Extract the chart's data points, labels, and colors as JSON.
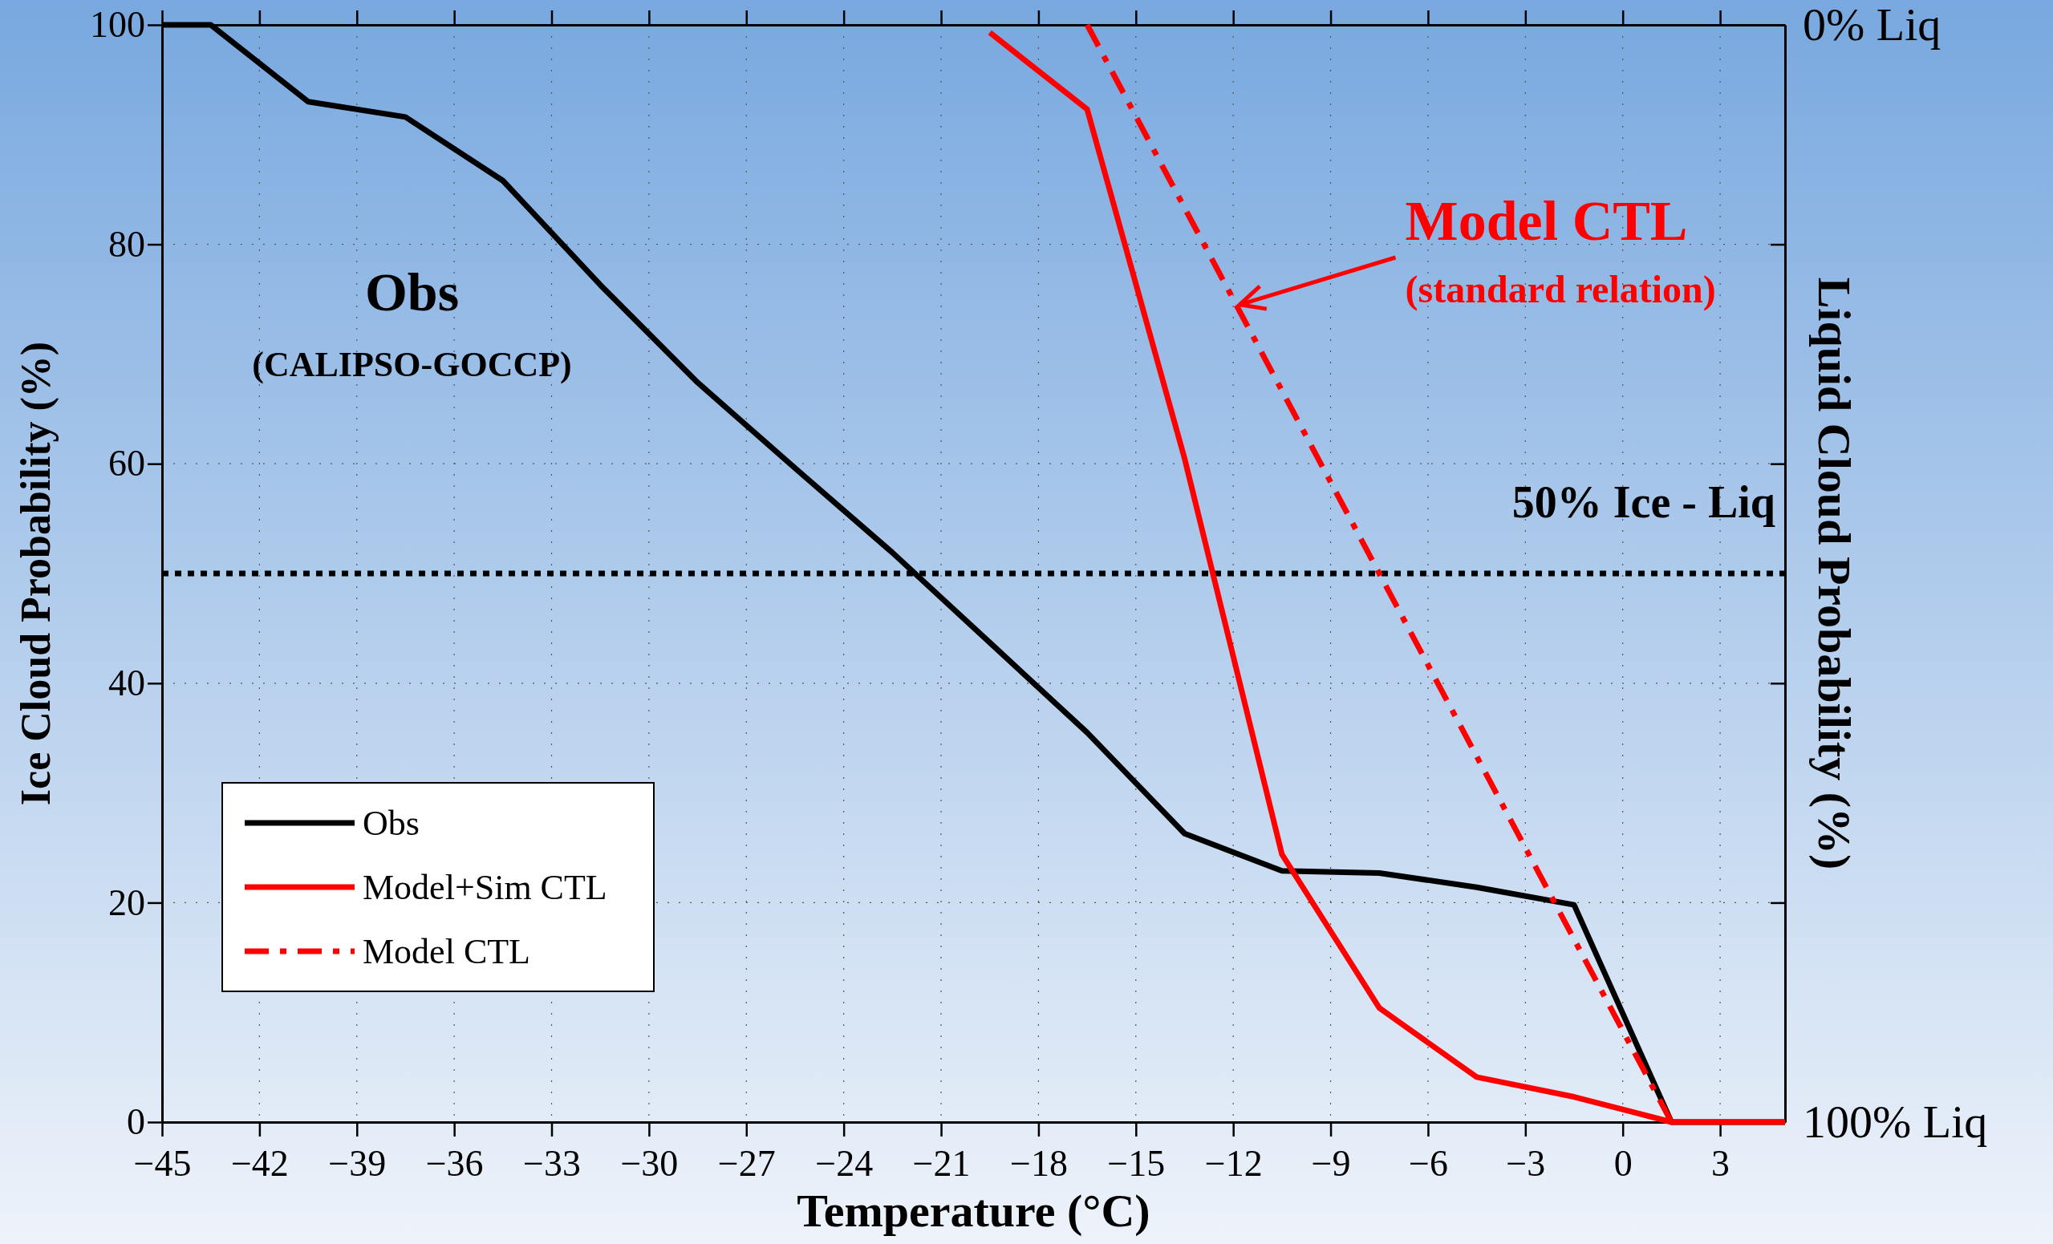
{
  "chart_data": {
    "type": "line",
    "xlabel": "Temperature (°C)",
    "ylabel": "Ice Cloud Probability (%)",
    "y2label": "Liquid Cloud Probability (%)",
    "xlim": [
      -45,
      5
    ],
    "xticks": [
      {
        "value": -45,
        "label": "−45"
      },
      {
        "value": -42,
        "label": "−42"
      },
      {
        "value": -39,
        "label": "−39"
      },
      {
        "value": -36,
        "label": "−36"
      },
      {
        "value": -33,
        "label": "−33"
      },
      {
        "value": -30,
        "label": "−30"
      },
      {
        "value": -27,
        "label": "−27"
      },
      {
        "value": -24,
        "label": "−24"
      },
      {
        "value": -21,
        "label": "−21"
      },
      {
        "value": -18,
        "label": "−18"
      },
      {
        "value": -15,
        "label": "−15"
      },
      {
        "value": -12,
        "label": "−12"
      },
      {
        "value": -9,
        "label": "−9"
      },
      {
        "value": -6,
        "label": "−6"
      },
      {
        "value": -3,
        "label": "−3"
      },
      0,
      3
    ],
    "ylim": [
      0,
      100
    ],
    "yticks": [
      0,
      20,
      40,
      60,
      80,
      100
    ],
    "y2lim": [
      100,
      0
    ],
    "y2ticks": [
      {
        "value": 0,
        "label": "0% Liq"
      },
      {
        "value": 20,
        "label": null
      },
      {
        "value": 40,
        "label": null
      },
      {
        "value": 60,
        "label": null
      },
      {
        "value": 80,
        "label": null
      },
      {
        "value": 100,
        "label": "100% Liq"
      }
    ],
    "grid": true,
    "legend": "bottom left",
    "marker": "none",
    "series": [
      {
        "name": "Obs",
        "color": "#000000",
        "line_style": "solid",
        "x": [
          -45,
          -43.5,
          -40.5,
          -37.5,
          -34.5,
          -31.5,
          -28.5,
          -25.5,
          -22.5,
          -19.5,
          -16.5,
          -13.5,
          -10.5,
          -7.5,
          -4.5,
          -1.5,
          1.5,
          5
        ],
        "values": [
          100,
          100,
          93,
          91.6,
          85.8,
          76.3,
          67.4,
          59.6,
          51.9,
          43.7,
          35.5,
          26.3,
          22.9,
          22.7,
          21.4,
          19.8,
          0,
          0
        ]
      },
      {
        "name": "Model+Sim CTL",
        "color": "#ff0000",
        "line_style": "solid",
        "x": [
          -19.5,
          -16.5,
          -13.5,
          -10.5,
          -7.5,
          -4.5,
          -1.5,
          1.5,
          5
        ],
        "values": [
          99.3,
          92.3,
          60.5,
          24.4,
          10.4,
          4.1,
          2.3,
          0,
          0
        ]
      },
      {
        "name": "Model CTL",
        "color": "#ff0000",
        "line_style": "dashdot",
        "x": [
          -16.5,
          1.5
        ],
        "values": [
          100,
          0
        ]
      }
    ],
    "ref_lines": [
      {
        "axis": "y",
        "value": 50,
        "label": "50% Ice - Liq",
        "color": "#000000",
        "line_style": "dotted"
      }
    ],
    "annotations": [
      "Obs",
      "(CALIPSO-GOCCP)",
      {
        "text": "Model CTL",
        "x": -11.8,
        "y": 74.5
      },
      "(standard relation)"
    ]
  }
}
